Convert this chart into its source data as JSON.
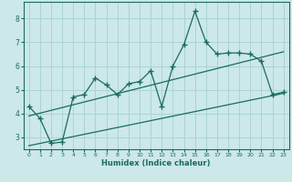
{
  "title": "",
  "xlabel": "Humidex (Indice chaleur)",
  "xlim": [
    -0.5,
    23.5
  ],
  "ylim": [
    2.5,
    8.7
  ],
  "xticks": [
    0,
    1,
    2,
    3,
    4,
    5,
    6,
    7,
    8,
    9,
    10,
    11,
    12,
    13,
    14,
    15,
    16,
    17,
    18,
    19,
    20,
    21,
    22,
    23
  ],
  "yticks": [
    3,
    4,
    5,
    6,
    7,
    8
  ],
  "bg_color": "#cce8e8",
  "grid_color": "#aad4d4",
  "line_color": "#1a6b5e",
  "main_x": [
    0,
    1,
    2,
    3,
    4,
    5,
    6,
    7,
    8,
    9,
    10,
    11,
    12,
    13,
    14,
    15,
    16,
    17,
    18,
    19,
    20,
    21,
    22,
    23
  ],
  "main_y": [
    4.3,
    3.8,
    2.75,
    2.8,
    4.7,
    4.8,
    5.5,
    5.2,
    4.8,
    5.25,
    5.35,
    5.8,
    4.3,
    6.0,
    6.9,
    8.3,
    7.0,
    6.5,
    6.55,
    6.55,
    6.5,
    6.2,
    4.8,
    4.9
  ],
  "trend1_x": [
    0,
    23
  ],
  "trend1_y": [
    3.9,
    6.6
  ],
  "trend2_x": [
    0,
    23
  ],
  "trend2_y": [
    2.65,
    4.85
  ]
}
